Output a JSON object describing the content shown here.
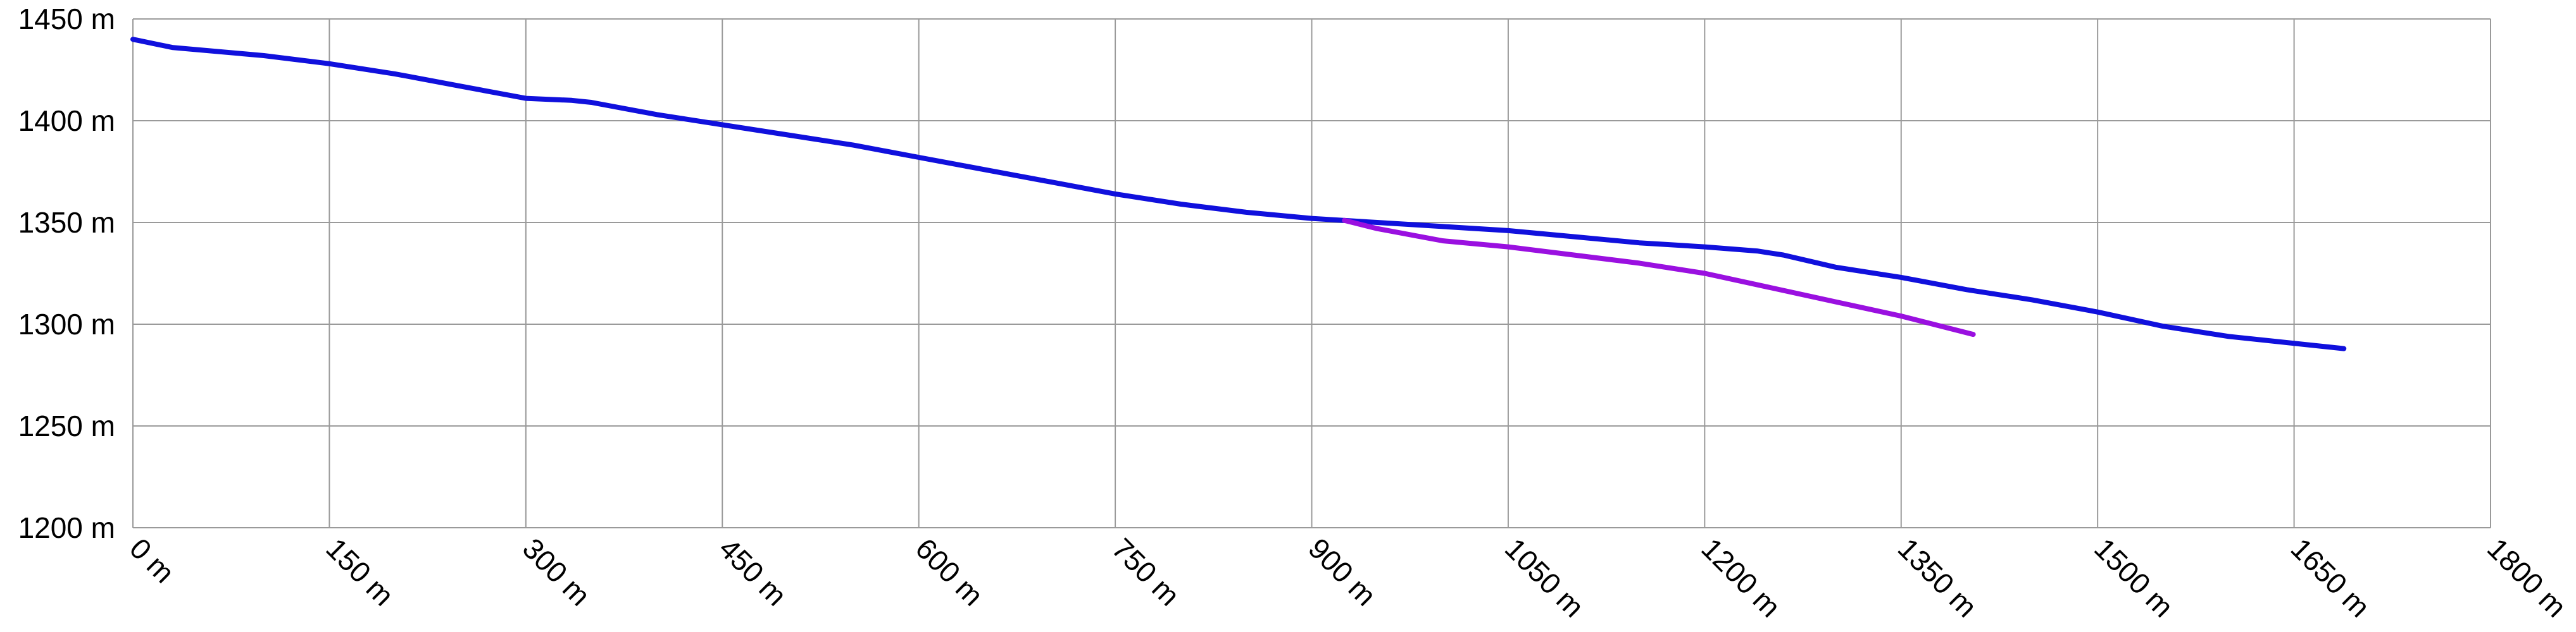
{
  "chart_data": {
    "type": "line",
    "x_unit": "m",
    "y_unit": "m",
    "xlim": [
      0,
      1800
    ],
    "ylim": [
      1200,
      1450
    ],
    "x_ticks": [
      0,
      150,
      300,
      450,
      600,
      750,
      900,
      1050,
      1200,
      1350,
      1500,
      1650,
      1800
    ],
    "y_ticks": [
      1200,
      1250,
      1300,
      1350,
      1400,
      1450
    ],
    "x_tick_labels": [
      "0 m",
      "150 m",
      "300 m",
      "450 m",
      "600 m",
      "750 m",
      "900 m",
      "1050 m",
      "1200 m",
      "1350 m",
      "1500 m",
      "1650 m",
      "1800 m"
    ],
    "y_tick_labels": [
      "1200 m",
      "1250 m",
      "1300 m",
      "1350 m",
      "1400 m",
      "1450 m"
    ],
    "grid": true,
    "legend": "none",
    "series": [
      {
        "color": "#1010dd",
        "x": [
          0,
          30,
          100,
          150,
          200,
          250,
          300,
          335,
          350,
          400,
          450,
          500,
          550,
          600,
          650,
          700,
          750,
          800,
          850,
          900,
          950,
          1000,
          1050,
          1100,
          1150,
          1200,
          1240,
          1260,
          1300,
          1350,
          1400,
          1450,
          1500,
          1550,
          1600,
          1688
        ],
        "y": [
          1440,
          1436,
          1432,
          1428,
          1423,
          1417,
          1411,
          1410,
          1409,
          1403,
          1398,
          1393,
          1388,
          1382,
          1376,
          1370,
          1364,
          1359,
          1355,
          1352,
          1350,
          1348,
          1346,
          1343,
          1340,
          1338,
          1336,
          1334,
          1328,
          1323,
          1317,
          1312,
          1306,
          1299,
          1294,
          1288
        ]
      },
      {
        "color": "#9a10e0",
        "x": [
          925,
          950,
          1000,
          1050,
          1100,
          1150,
          1200,
          1250,
          1300,
          1350,
          1405
        ],
        "y": [
          1351,
          1347,
          1341,
          1338,
          1334,
          1330,
          1325,
          1318,
          1311,
          1304,
          1295
        ]
      }
    ]
  }
}
